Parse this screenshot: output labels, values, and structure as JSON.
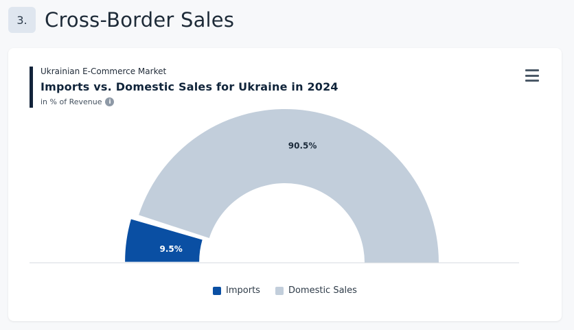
{
  "section": {
    "number": "3.",
    "title": "Cross-Border Sales"
  },
  "chart": {
    "eyebrow": "Ukrainian E-Commerce Market",
    "title": "Imports vs. Domestic Sales for Ukraine in 2024",
    "subtitle": "in % of Revenue",
    "info_icon": "i"
  },
  "chart_data": {
    "type": "pie",
    "variant": "half-donut",
    "title": "Imports vs. Domestic Sales for Ukraine in 2024",
    "subtitle": "in % of Revenue",
    "categories": [
      "Imports",
      "Domestic Sales"
    ],
    "values": [
      9.5,
      90.5
    ],
    "labels": [
      "9.5%",
      "90.5%"
    ],
    "colors": [
      "#0a4fa3",
      "#c2cedb"
    ],
    "legend_position": "bottom"
  },
  "legend": [
    {
      "label": "Imports",
      "color": "#0a4fa3"
    },
    {
      "label": "Domestic Sales",
      "color": "#c2cedb"
    }
  ]
}
